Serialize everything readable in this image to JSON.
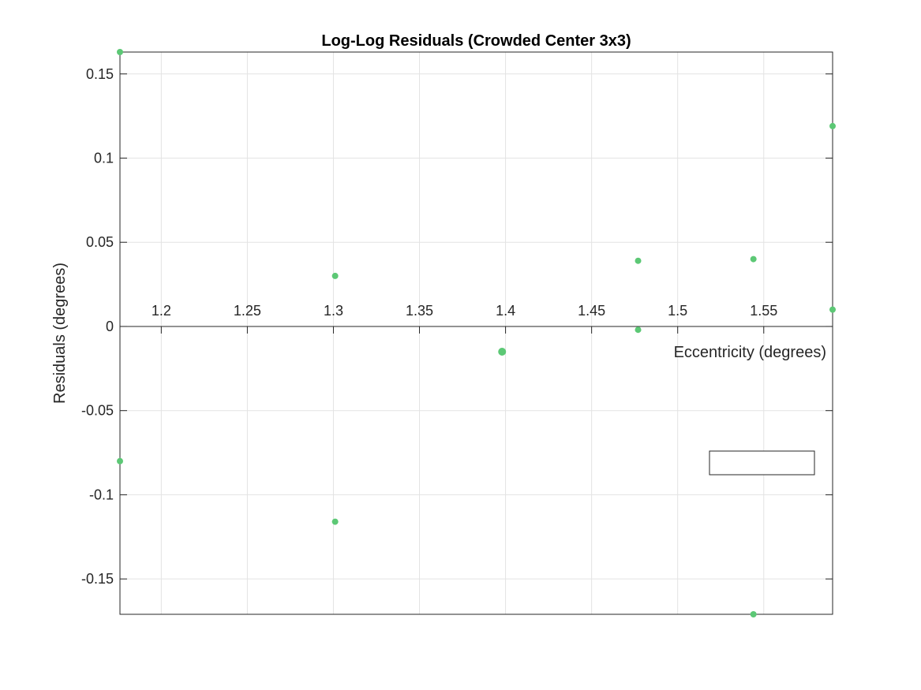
{
  "chart_data": {
    "type": "scatter",
    "title": "Log-Log Residuals (Crowded Center 3x3)",
    "xlabel": "Eccentricity (degrees)",
    "ylabel": "Residuals (degrees)",
    "xlim": [
      1.176,
      1.59
    ],
    "ylim": [
      -0.171,
      0.163
    ],
    "x_ticks": [
      1.2,
      1.25,
      1.3,
      1.35,
      1.4,
      1.45,
      1.5,
      1.55
    ],
    "x_tick_labels": [
      "1.2",
      "1.25",
      "1.3",
      "1.35",
      "1.4",
      "1.45",
      "1.5",
      "1.55"
    ],
    "y_ticks": [
      0.15,
      0.1,
      0.05,
      0,
      -0.05,
      -0.1,
      -0.15
    ],
    "y_tick_labels": [
      "0.15",
      "0.1",
      "0.05",
      "0",
      "-0.05",
      "-0.1",
      "-0.15"
    ],
    "x_axis_location": "origin",
    "grid": true,
    "legend": "empty box, lower-right",
    "marker_color": "#5cc875",
    "series": [
      {
        "points": [
          {
            "x": 1.176,
            "y": 0.163
          },
          {
            "x": 1.176,
            "y": -0.08
          },
          {
            "x": 1.301,
            "y": 0.03
          },
          {
            "x": 1.301,
            "y": -0.116
          },
          {
            "x": 1.398,
            "y": -0.015
          },
          {
            "x": 1.477,
            "y": 0.039
          },
          {
            "x": 1.477,
            "y": -0.002
          },
          {
            "x": 1.544,
            "y": 0.04
          },
          {
            "x": 1.544,
            "y": -0.171
          },
          {
            "x": 1.602,
            "y": 0.119
          },
          {
            "x": 1.602,
            "y": 0.01
          }
        ]
      }
    ]
  }
}
